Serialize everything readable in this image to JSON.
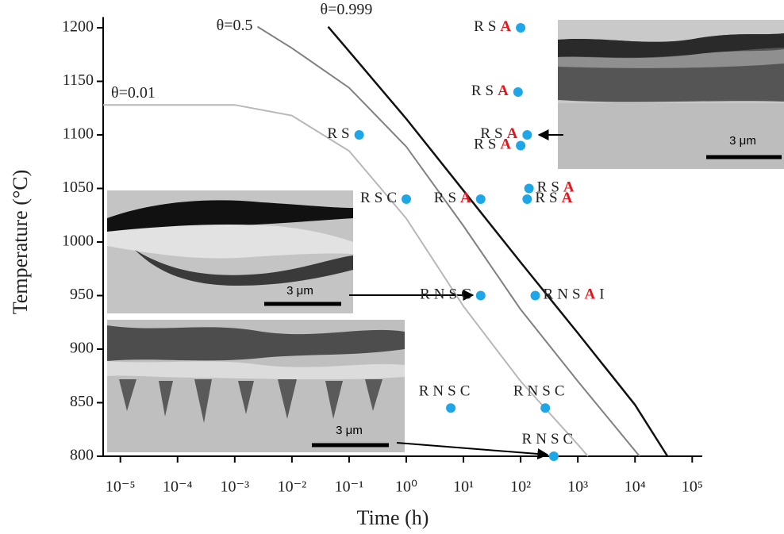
{
  "chart_data": {
    "type": "scatter",
    "xlabel": "Time (h)",
    "ylabel": "Temperature (°C)",
    "xscale": "log",
    "xlim": [
      5e-06,
      150000
    ],
    "ylim": [
      800,
      1210
    ],
    "xticks": [
      {
        "value": 1e-05,
        "label": "10⁻⁵"
      },
      {
        "value": 0.0001,
        "label": "10⁻⁴"
      },
      {
        "value": 0.001,
        "label": "10⁻³"
      },
      {
        "value": 0.01,
        "label": "10⁻²"
      },
      {
        "value": 0.1,
        "label": "10⁻¹"
      },
      {
        "value": 1,
        "label": "10⁰"
      },
      {
        "value": 10,
        "label": "10¹"
      },
      {
        "value": 100,
        "label": "10²"
      },
      {
        "value": 1000,
        "label": "10³"
      },
      {
        "value": 10000,
        "label": "10⁴"
      },
      {
        "value": 100000,
        "label": "10⁵"
      }
    ],
    "yticks": [
      800,
      850,
      900,
      950,
      1000,
      1050,
      1100,
      1150,
      1200
    ],
    "curves": [
      {
        "name": "θ=0.01",
        "color": "#b8b8b8",
        "x": [
          5e-06,
          0.001,
          0.01,
          0.1,
          1,
          10,
          100,
          1000,
          1500
        ],
        "y": [
          1128,
          1128,
          1118,
          1085,
          1022,
          940,
          870,
          811,
          800
        ]
      },
      {
        "name": "θ=0.5",
        "color": "#808080",
        "x": [
          0.0025,
          0.01,
          0.1,
          1,
          10,
          100,
          1000,
          12000
        ],
        "y": [
          1201,
          1181,
          1144,
          1089,
          1015,
          937,
          870,
          800
        ]
      },
      {
        "name": "θ=0.999",
        "color": "#111111",
        "x": [
          0.043,
          0.1,
          1,
          10,
          100,
          1000,
          10000,
          37000
        ],
        "y": [
          1201,
          1178,
          1115,
          1048,
          981,
          915,
          848,
          800
        ]
      }
    ],
    "points": {
      "color": "#1ea7e8",
      "x": [
        100,
        90,
        130,
        100,
        0.15,
        1,
        20,
        140,
        130,
        20,
        180,
        6,
        270,
        380
      ],
      "y": [
        1200,
        1140,
        1100,
        1090,
        1100,
        1040,
        1040,
        1050,
        1040,
        950,
        950,
        845,
        845,
        800
      ],
      "labels": [
        [
          "R",
          "S",
          "A"
        ],
        [
          "R",
          "S",
          "A"
        ],
        [
          "R",
          "S",
          "A"
        ],
        [
          "R",
          "S",
          "A"
        ],
        [
          "R",
          "S"
        ],
        [
          "R",
          "S",
          "C"
        ],
        [
          "R",
          "S",
          "A"
        ],
        [
          "R",
          "S",
          "A"
        ],
        [
          "R",
          "S",
          "A"
        ],
        [
          "R",
          "N",
          "S",
          "C"
        ],
        [
          "R",
          "N",
          "S",
          "A",
          "I"
        ],
        [
          "R",
          "N",
          "S",
          "C"
        ],
        [
          "R",
          "N",
          "S",
          "C"
        ],
        [
          "R",
          "N",
          "S",
          "C"
        ]
      ]
    },
    "highlight_token": "A",
    "highlight_color": "#e8141b",
    "insets": [
      {
        "scale_label": "3 μm"
      },
      {
        "scale_label": "3 μm"
      },
      {
        "scale_label": "3 μm"
      }
    ]
  }
}
